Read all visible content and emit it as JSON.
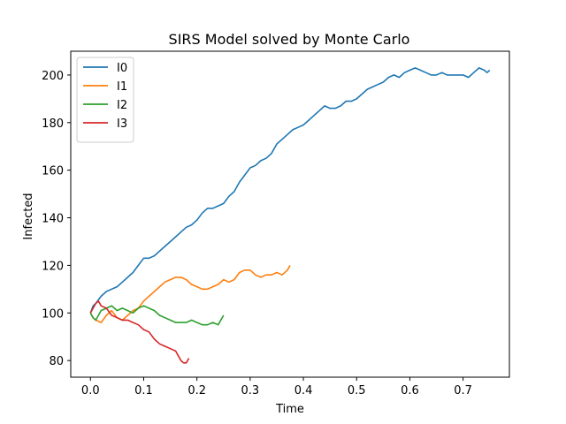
{
  "chart_data": {
    "type": "line",
    "title": "SIRS Model solved by Monte Carlo",
    "xlabel": "Time",
    "ylabel": "Infected",
    "xlim": [
      -0.037,
      0.787
    ],
    "ylim": [
      73,
      210
    ],
    "xticks": [
      0.0,
      0.1,
      0.2,
      0.3,
      0.4,
      0.5,
      0.6,
      0.7
    ],
    "xtick_labels": [
      "0.0",
      "0.1",
      "0.2",
      "0.3",
      "0.4",
      "0.5",
      "0.6",
      "0.7"
    ],
    "yticks": [
      80,
      100,
      120,
      140,
      160,
      180,
      200
    ],
    "ytick_labels": [
      "80",
      "100",
      "120",
      "140",
      "160",
      "180",
      "200"
    ],
    "grid": false,
    "legend_position": "top-left",
    "series": [
      {
        "name": "I0",
        "color": "#1f77b4",
        "points": [
          [
            0.0,
            100
          ],
          [
            0.005,
            103
          ],
          [
            0.01,
            104
          ],
          [
            0.02,
            107
          ],
          [
            0.03,
            109
          ],
          [
            0.04,
            110
          ],
          [
            0.05,
            111
          ],
          [
            0.06,
            113
          ],
          [
            0.07,
            115
          ],
          [
            0.08,
            117
          ],
          [
            0.09,
            120
          ],
          [
            0.1,
            123
          ],
          [
            0.11,
            123
          ],
          [
            0.12,
            124
          ],
          [
            0.13,
            126
          ],
          [
            0.14,
            128
          ],
          [
            0.15,
            130
          ],
          [
            0.16,
            132
          ],
          [
            0.17,
            134
          ],
          [
            0.18,
            136
          ],
          [
            0.19,
            137
          ],
          [
            0.2,
            139
          ],
          [
            0.21,
            142
          ],
          [
            0.22,
            144
          ],
          [
            0.23,
            144
          ],
          [
            0.24,
            145
          ],
          [
            0.25,
            146
          ],
          [
            0.26,
            149
          ],
          [
            0.27,
            151
          ],
          [
            0.28,
            155
          ],
          [
            0.29,
            158
          ],
          [
            0.3,
            161
          ],
          [
            0.31,
            162
          ],
          [
            0.32,
            164
          ],
          [
            0.33,
            165
          ],
          [
            0.34,
            167
          ],
          [
            0.35,
            171
          ],
          [
            0.36,
            173
          ],
          [
            0.37,
            175
          ],
          [
            0.38,
            177
          ],
          [
            0.39,
            178
          ],
          [
            0.4,
            179
          ],
          [
            0.41,
            181
          ],
          [
            0.42,
            183
          ],
          [
            0.43,
            185
          ],
          [
            0.44,
            187
          ],
          [
            0.45,
            186
          ],
          [
            0.46,
            186
          ],
          [
            0.47,
            187
          ],
          [
            0.48,
            189
          ],
          [
            0.49,
            189
          ],
          [
            0.5,
            190
          ],
          [
            0.51,
            192
          ],
          [
            0.52,
            194
          ],
          [
            0.53,
            195
          ],
          [
            0.54,
            196
          ],
          [
            0.55,
            197
          ],
          [
            0.56,
            199
          ],
          [
            0.57,
            200
          ],
          [
            0.58,
            199
          ],
          [
            0.59,
            201
          ],
          [
            0.6,
            202
          ],
          [
            0.61,
            203
          ],
          [
            0.62,
            202
          ],
          [
            0.63,
            201
          ],
          [
            0.64,
            200
          ],
          [
            0.65,
            200
          ],
          [
            0.66,
            201
          ],
          [
            0.67,
            200
          ],
          [
            0.68,
            200
          ],
          [
            0.69,
            200
          ],
          [
            0.7,
            200
          ],
          [
            0.71,
            199
          ],
          [
            0.72,
            201
          ],
          [
            0.73,
            203
          ],
          [
            0.74,
            202
          ],
          [
            0.745,
            201
          ],
          [
            0.75,
            202
          ]
        ]
      },
      {
        "name": "I1",
        "color": "#ff7f0e",
        "points": [
          [
            0.0,
            100
          ],
          [
            0.005,
            98
          ],
          [
            0.01,
            97
          ],
          [
            0.02,
            96
          ],
          [
            0.03,
            99
          ],
          [
            0.04,
            101
          ],
          [
            0.05,
            98
          ],
          [
            0.06,
            97
          ],
          [
            0.07,
            99
          ],
          [
            0.08,
            101
          ],
          [
            0.09,
            102
          ],
          [
            0.1,
            105
          ],
          [
            0.11,
            107
          ],
          [
            0.12,
            109
          ],
          [
            0.13,
            111
          ],
          [
            0.14,
            113
          ],
          [
            0.15,
            114
          ],
          [
            0.16,
            115
          ],
          [
            0.17,
            115
          ],
          [
            0.18,
            114
          ],
          [
            0.19,
            112
          ],
          [
            0.2,
            111
          ],
          [
            0.21,
            110
          ],
          [
            0.22,
            110
          ],
          [
            0.23,
            111
          ],
          [
            0.24,
            112
          ],
          [
            0.25,
            114
          ],
          [
            0.26,
            113
          ],
          [
            0.27,
            114
          ],
          [
            0.28,
            117
          ],
          [
            0.29,
            118
          ],
          [
            0.3,
            118
          ],
          [
            0.31,
            116
          ],
          [
            0.32,
            115
          ],
          [
            0.33,
            116
          ],
          [
            0.34,
            116
          ],
          [
            0.35,
            117
          ],
          [
            0.36,
            116
          ],
          [
            0.37,
            118
          ],
          [
            0.375,
            120
          ]
        ]
      },
      {
        "name": "I2",
        "color": "#2ca02c",
        "points": [
          [
            0.0,
            100
          ],
          [
            0.005,
            98
          ],
          [
            0.01,
            97
          ],
          [
            0.015,
            99
          ],
          [
            0.02,
            101
          ],
          [
            0.03,
            102
          ],
          [
            0.04,
            103
          ],
          [
            0.05,
            101
          ],
          [
            0.06,
            102
          ],
          [
            0.07,
            101
          ],
          [
            0.08,
            100
          ],
          [
            0.09,
            102
          ],
          [
            0.1,
            103
          ],
          [
            0.11,
            102
          ],
          [
            0.12,
            101
          ],
          [
            0.13,
            99
          ],
          [
            0.14,
            98
          ],
          [
            0.15,
            97
          ],
          [
            0.16,
            96
          ],
          [
            0.17,
            96
          ],
          [
            0.18,
            96
          ],
          [
            0.19,
            97
          ],
          [
            0.2,
            96
          ],
          [
            0.21,
            95
          ],
          [
            0.22,
            95
          ],
          [
            0.23,
            96
          ],
          [
            0.24,
            95
          ],
          [
            0.245,
            97
          ],
          [
            0.25,
            99
          ]
        ]
      },
      {
        "name": "I3",
        "color": "#d62728",
        "points": [
          [
            0.0,
            100
          ],
          [
            0.005,
            102
          ],
          [
            0.01,
            104
          ],
          [
            0.015,
            105
          ],
          [
            0.02,
            103
          ],
          [
            0.03,
            102
          ],
          [
            0.04,
            99
          ],
          [
            0.05,
            98
          ],
          [
            0.06,
            97
          ],
          [
            0.07,
            97
          ],
          [
            0.08,
            96
          ],
          [
            0.09,
            95
          ],
          [
            0.1,
            93
          ],
          [
            0.11,
            92
          ],
          [
            0.12,
            89
          ],
          [
            0.13,
            87
          ],
          [
            0.14,
            86
          ],
          [
            0.15,
            85
          ],
          [
            0.16,
            84
          ],
          [
            0.165,
            82
          ],
          [
            0.17,
            80
          ],
          [
            0.175,
            79
          ],
          [
            0.18,
            79
          ],
          [
            0.185,
            81
          ]
        ]
      }
    ]
  }
}
